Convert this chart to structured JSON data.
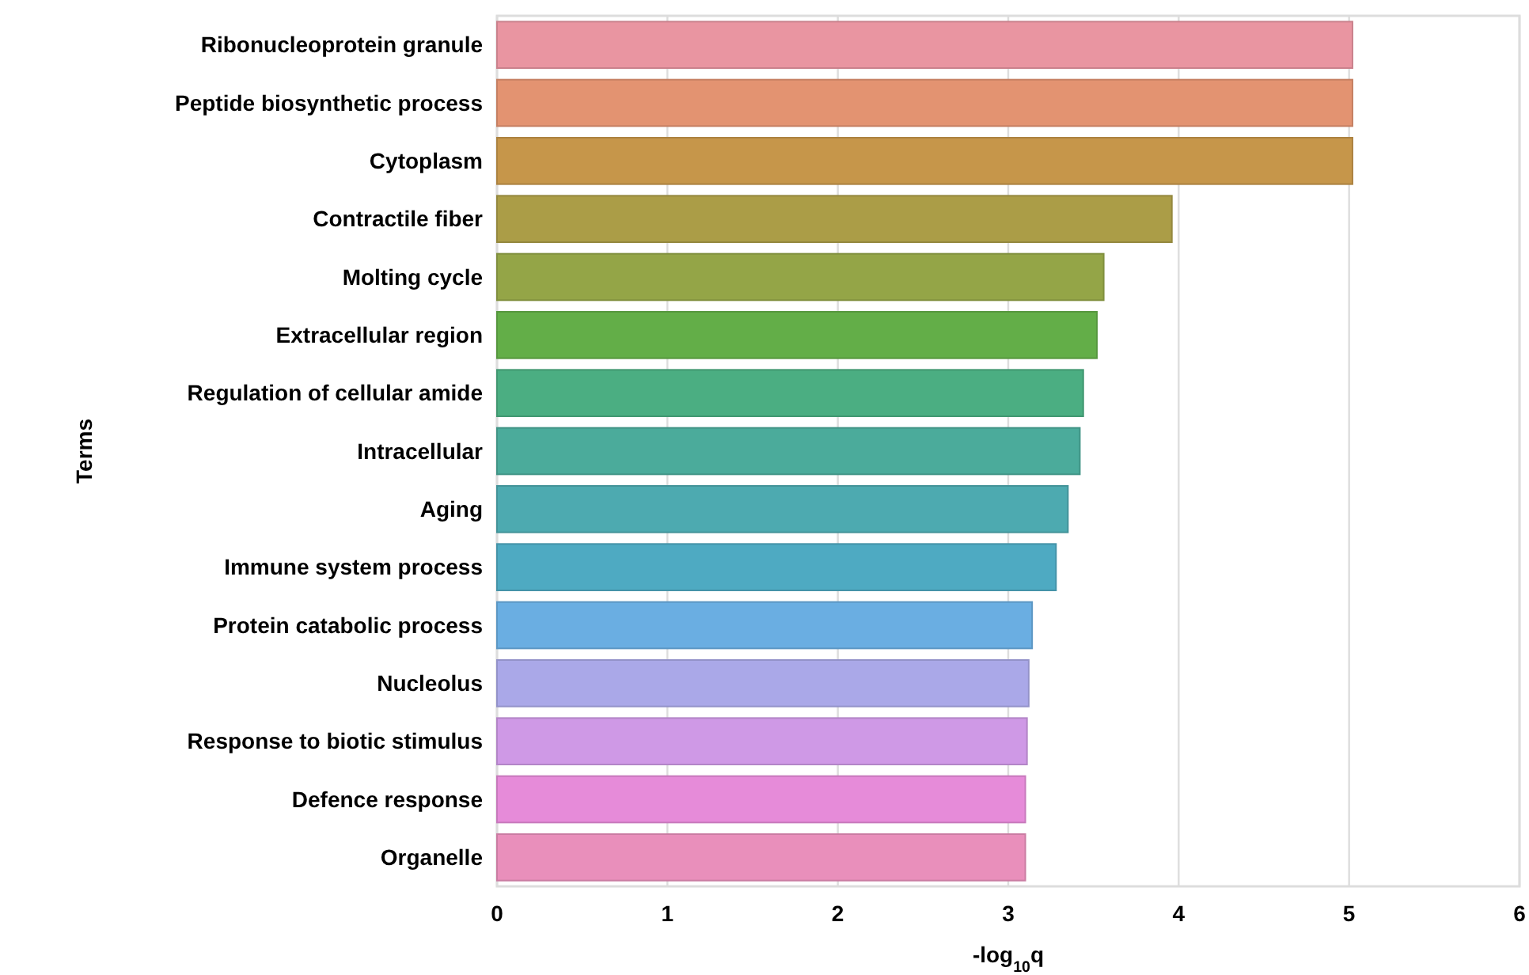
{
  "chart_data": {
    "type": "bar",
    "orientation": "horizontal",
    "xlabel": "-log$_{10}$q",
    "ylabel": "Terms",
    "categories": [
      "Ribonucleoprotein granule",
      "Peptide biosynthetic process",
      "Cytoplasm",
      "Contractile fiber",
      "Molting cycle",
      "Extracellular region ",
      "Regulation of cellular amide",
      "Intracellular",
      "Aging",
      "Immune system process",
      "Protein catabolic process",
      "Nucleolus",
      "Response to biotic stimulus",
      "Defence response",
      "Organelle"
    ],
    "values": [
      5.02,
      5.02,
      5.02,
      3.96,
      3.56,
      3.52,
      3.44,
      3.42,
      3.35,
      3.28,
      3.14,
      3.12,
      3.11,
      3.1,
      3.1
    ],
    "colors": [
      "#e995a1",
      "#e39371",
      "#c6964a",
      "#ab9d47",
      "#94a547",
      "#63ae48",
      "#4bae82",
      "#4bab9b",
      "#4daab0",
      "#4eaac2",
      "#6aaee2",
      "#aaa8e8",
      "#cf99e6",
      "#e68bd9",
      "#e98fbb"
    ],
    "xlim": [
      0,
      6
    ],
    "xticks": [
      0,
      1,
      2,
      3,
      4,
      5,
      6
    ],
    "grid": "x"
  }
}
